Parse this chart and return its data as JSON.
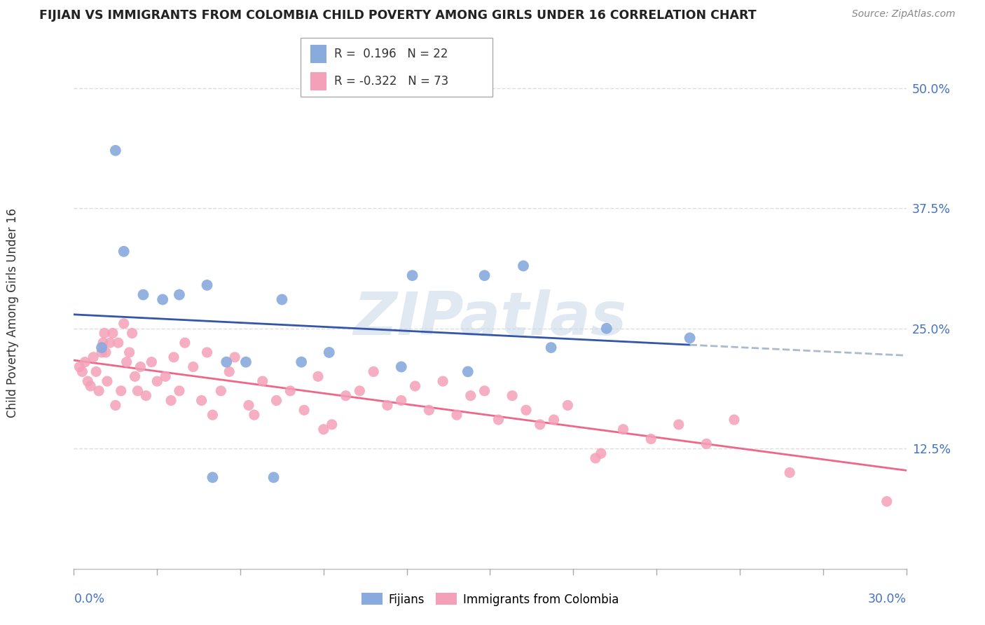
{
  "title": "FIJIAN VS IMMIGRANTS FROM COLOMBIA CHILD POVERTY AMONG GIRLS UNDER 16 CORRELATION CHART",
  "source": "Source: ZipAtlas.com",
  "ylabel": "Child Poverty Among Girls Under 16",
  "xlim": [
    0.0,
    30.0
  ],
  "ylim": [
    0.0,
    52.0
  ],
  "yticks": [
    12.5,
    25.0,
    37.5,
    50.0
  ],
  "ytick_labels": [
    "12.5%",
    "25.0%",
    "37.5%",
    "50.0%"
  ],
  "fijian_color": "#88AADD",
  "colombia_color": "#F4A0B8",
  "fijian_line_color": "#3355AA",
  "colombia_line_color": "#EE6688",
  "fijian_dashed_color": "#AABBCC",
  "fijian_points": [
    [
      1.5,
      43.5
    ],
    [
      1.8,
      33.0
    ],
    [
      2.5,
      28.5
    ],
    [
      3.2,
      28.0
    ],
    [
      3.8,
      28.5
    ],
    [
      4.8,
      29.5
    ],
    [
      5.5,
      21.5
    ],
    [
      6.2,
      21.5
    ],
    [
      7.5,
      28.0
    ],
    [
      8.2,
      21.5
    ],
    [
      9.2,
      22.5
    ],
    [
      11.8,
      21.0
    ],
    [
      12.2,
      30.5
    ],
    [
      14.8,
      30.5
    ],
    [
      16.2,
      31.5
    ],
    [
      17.2,
      23.0
    ],
    [
      19.2,
      25.0
    ],
    [
      22.2,
      24.0
    ],
    [
      1.0,
      23.0
    ],
    [
      5.0,
      9.5
    ],
    [
      7.2,
      9.5
    ],
    [
      14.2,
      20.5
    ]
  ],
  "colombia_points": [
    [
      0.2,
      21.0
    ],
    [
      0.3,
      20.5
    ],
    [
      0.4,
      21.5
    ],
    [
      0.5,
      19.5
    ],
    [
      0.6,
      19.0
    ],
    [
      0.7,
      22.0
    ],
    [
      0.8,
      20.5
    ],
    [
      0.9,
      18.5
    ],
    [
      1.0,
      22.5
    ],
    [
      1.05,
      23.5
    ],
    [
      1.1,
      24.5
    ],
    [
      1.15,
      22.5
    ],
    [
      1.2,
      19.5
    ],
    [
      1.3,
      23.5
    ],
    [
      1.4,
      24.5
    ],
    [
      1.5,
      17.0
    ],
    [
      1.6,
      23.5
    ],
    [
      1.7,
      18.5
    ],
    [
      1.8,
      25.5
    ],
    [
      1.9,
      21.5
    ],
    [
      2.0,
      22.5
    ],
    [
      2.1,
      24.5
    ],
    [
      2.2,
      20.0
    ],
    [
      2.3,
      18.5
    ],
    [
      2.4,
      21.0
    ],
    [
      2.6,
      18.0
    ],
    [
      2.8,
      21.5
    ],
    [
      3.0,
      19.5
    ],
    [
      3.3,
      20.0
    ],
    [
      3.6,
      22.0
    ],
    [
      3.8,
      18.5
    ],
    [
      4.0,
      23.5
    ],
    [
      4.3,
      21.0
    ],
    [
      4.6,
      17.5
    ],
    [
      4.8,
      22.5
    ],
    [
      5.0,
      16.0
    ],
    [
      5.3,
      18.5
    ],
    [
      5.6,
      20.5
    ],
    [
      5.8,
      22.0
    ],
    [
      6.3,
      17.0
    ],
    [
      6.8,
      19.5
    ],
    [
      7.3,
      17.5
    ],
    [
      7.8,
      18.5
    ],
    [
      8.3,
      16.5
    ],
    [
      8.8,
      20.0
    ],
    [
      9.3,
      15.0
    ],
    [
      9.8,
      18.0
    ],
    [
      10.3,
      18.5
    ],
    [
      10.8,
      20.5
    ],
    [
      11.3,
      17.0
    ],
    [
      11.8,
      17.5
    ],
    [
      12.3,
      19.0
    ],
    [
      12.8,
      16.5
    ],
    [
      13.3,
      19.5
    ],
    [
      13.8,
      16.0
    ],
    [
      14.3,
      18.0
    ],
    [
      14.8,
      18.5
    ],
    [
      15.3,
      15.5
    ],
    [
      15.8,
      18.0
    ],
    [
      16.3,
      16.5
    ],
    [
      16.8,
      15.0
    ],
    [
      17.3,
      15.5
    ],
    [
      17.8,
      17.0
    ],
    [
      18.8,
      11.5
    ],
    [
      19.0,
      12.0
    ],
    [
      19.8,
      14.5
    ],
    [
      20.8,
      13.5
    ],
    [
      21.8,
      15.0
    ],
    [
      22.8,
      13.0
    ],
    [
      23.8,
      15.5
    ],
    [
      25.8,
      10.0
    ],
    [
      29.3,
      7.0
    ],
    [
      3.5,
      17.5
    ],
    [
      6.5,
      16.0
    ],
    [
      9.0,
      14.5
    ]
  ],
  "watermark_text": "ZIPatlas",
  "watermark_color": "#C8D8E8",
  "background_color": "#FFFFFF",
  "grid_color": "#DDDDDD",
  "title_color": "#222222",
  "source_color": "#888888",
  "axis_label_color": "#333333",
  "tick_label_color": "#4472C4"
}
